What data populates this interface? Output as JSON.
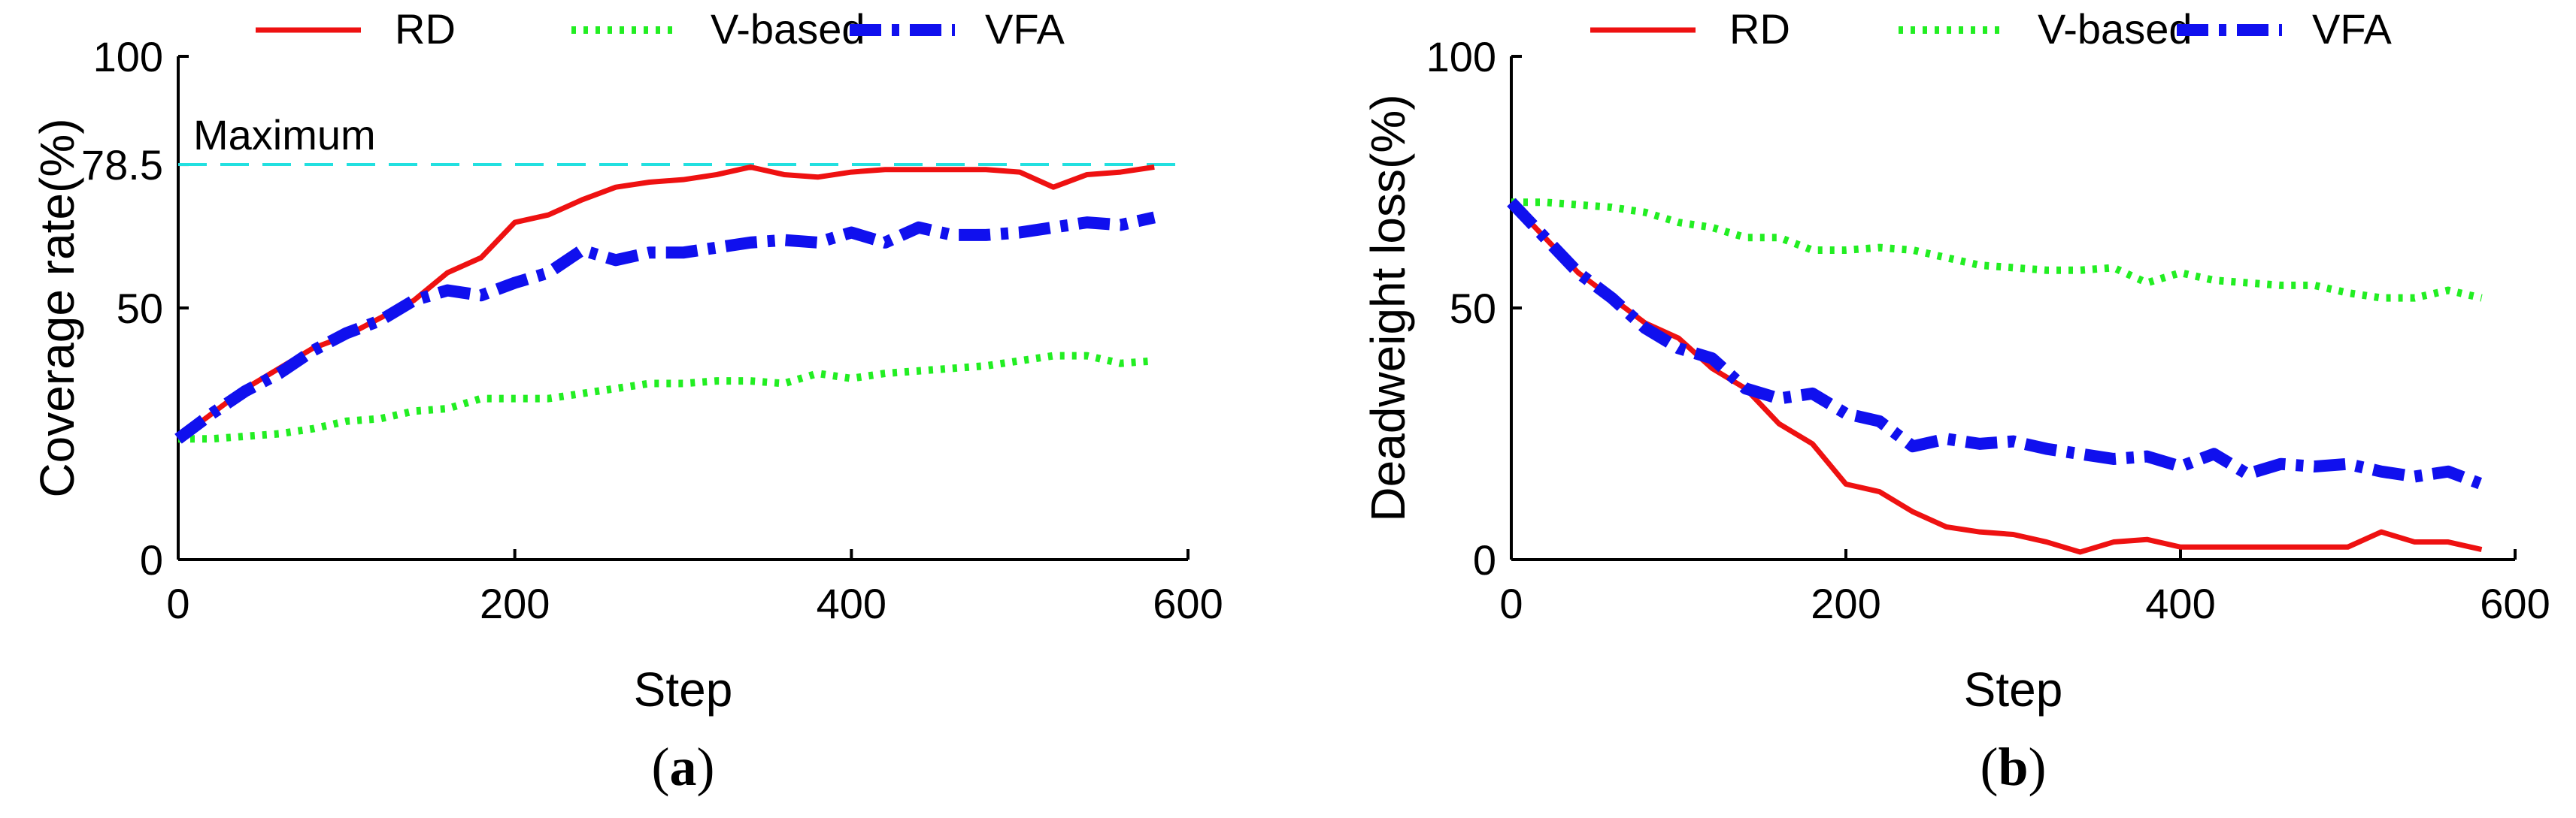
{
  "chart_data": [
    {
      "type": "line",
      "panel_label": "a",
      "title": "",
      "xlabel": "Step",
      "ylabel": "Coverage rate(%)",
      "xlim": [
        0,
        600
      ],
      "ylim": [
        0,
        100
      ],
      "xticks": [
        0,
        200,
        400,
        600
      ],
      "yticks": [
        0,
        50,
        78.5,
        100
      ],
      "grid": false,
      "legend": "top-outside",
      "reference_line": {
        "label": "Maximum",
        "value": 78.5,
        "color": "#22e0e0"
      },
      "x": [
        0,
        20,
        40,
        60,
        80,
        100,
        120,
        140,
        160,
        180,
        200,
        220,
        240,
        260,
        280,
        300,
        320,
        340,
        360,
        380,
        400,
        420,
        440,
        460,
        480,
        500,
        520,
        540,
        560,
        580
      ],
      "series": [
        {
          "name": "RD",
          "color": "#ee1111",
          "dash": "solid",
          "values": [
            24,
            29,
            34,
            38,
            42,
            44.5,
            48,
            51.5,
            57,
            60,
            67,
            68.5,
            71.5,
            74,
            75,
            75.5,
            76.5,
            78,
            76.5,
            76,
            77,
            77.5,
            77.5,
            77.5,
            77.5,
            77,
            74,
            76.5,
            77,
            78
          ]
        },
        {
          "name": "V-based",
          "color": "#22ee22",
          "dash": "dotted",
          "values": [
            24,
            24,
            24.5,
            25,
            26,
            27.5,
            28,
            29.5,
            30,
            32,
            32,
            32,
            33,
            34,
            35,
            35,
            35.5,
            35.5,
            35,
            37,
            36,
            37,
            37.5,
            38,
            38.5,
            39.5,
            40.5,
            40.5,
            39,
            39.5
          ]
        },
        {
          "name": "VFA",
          "color": "#1010ee",
          "dash": "dashed",
          "values": [
            24,
            29,
            33.5,
            37,
            41.5,
            45,
            47.5,
            51.5,
            53.5,
            52.5,
            55,
            57,
            61.5,
            59.5,
            61,
            61,
            62,
            63,
            63.5,
            63,
            65,
            63,
            66,
            64.5,
            64.5,
            65,
            66,
            67,
            66.5,
            68
          ]
        }
      ]
    },
    {
      "type": "line",
      "panel_label": "b",
      "title": "",
      "xlabel": "Step",
      "ylabel": "Deadweight loss(%)",
      "xlim": [
        0,
        600
      ],
      "ylim": [
        0,
        100
      ],
      "xticks": [
        0,
        200,
        400,
        600
      ],
      "yticks": [
        0,
        50,
        100
      ],
      "grid": false,
      "legend": "top-outside",
      "x": [
        0,
        20,
        40,
        60,
        80,
        100,
        120,
        140,
        160,
        180,
        200,
        220,
        240,
        260,
        280,
        300,
        320,
        340,
        360,
        380,
        400,
        420,
        440,
        460,
        480,
        500,
        520,
        540,
        560,
        580
      ],
      "series": [
        {
          "name": "RD",
          "color": "#ee1111",
          "dash": "solid",
          "values": [
            71,
            64,
            57,
            52,
            47,
            44,
            38,
            34,
            27,
            23,
            15,
            13.5,
            9.5,
            6.5,
            5.5,
            5,
            3.5,
            1.5,
            3.5,
            4,
            2.5,
            2.5,
            2.5,
            2.5,
            2.5,
            2.5,
            5.5,
            3.5,
            3.5,
            2
          ]
        },
        {
          "name": "V-based",
          "color": "#22ee22",
          "dash": "dotted",
          "values": [
            71,
            71,
            70.5,
            70,
            69,
            67,
            66,
            64,
            64,
            61.5,
            61.5,
            62,
            61.5,
            60,
            58.5,
            58,
            57.5,
            57.5,
            58,
            55,
            57,
            55.5,
            55,
            54.5,
            54.5,
            53,
            52,
            52,
            53.5,
            52
          ]
        },
        {
          "name": "VFA",
          "color": "#1010ee",
          "dash": "dashed",
          "values": [
            71,
            64,
            57,
            52,
            46,
            42,
            40,
            34,
            32,
            33,
            29,
            27.5,
            22.5,
            24,
            23,
            23.5,
            22,
            21,
            20,
            20.5,
            18.5,
            21,
            17,
            19,
            18.5,
            19,
            17.5,
            16.5,
            17.5,
            15
          ]
        }
      ]
    }
  ]
}
